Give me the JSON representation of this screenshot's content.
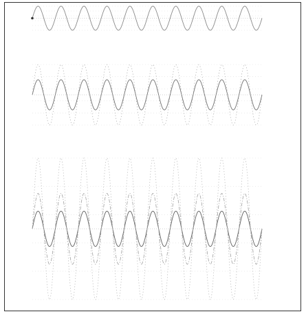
{
  "chart_data": [
    {
      "type": "line",
      "panel": "top",
      "title": "",
      "xlabel": "",
      "ylabel": "",
      "cycles": 10,
      "ylim": [
        -1,
        1
      ],
      "series": [
        {
          "amplitude": 1.0,
          "color": "#8a8a8a",
          "style": "solid"
        }
      ],
      "marker_points": [
        {
          "x": 0,
          "y": 0
        }
      ],
      "grid": true
    },
    {
      "type": "line",
      "panel": "middle",
      "title": "",
      "xlabel": "",
      "ylabel": "",
      "cycles": 10,
      "ylim": [
        -2,
        2
      ],
      "series": [
        {
          "amplitude": 1.0,
          "color": "#6f6f6f",
          "style": "solid"
        },
        {
          "amplitude": 2.0,
          "color": "#a6a6a6",
          "style": "dotted"
        }
      ],
      "grid": true
    },
    {
      "type": "line",
      "panel": "bottom",
      "title": "",
      "xlabel": "",
      "ylabel": "",
      "cycles": 10,
      "ylim": [
        -4,
        4
      ],
      "series": [
        {
          "amplitude": 1.0,
          "color": "#5f5f5f",
          "style": "solid"
        },
        {
          "amplitude": 2.0,
          "color": "#9a9a9a",
          "style": "dashdot"
        },
        {
          "amplitude": 4.0,
          "color": "#b1b1b1",
          "style": "dotted"
        }
      ],
      "grid": true
    }
  ]
}
